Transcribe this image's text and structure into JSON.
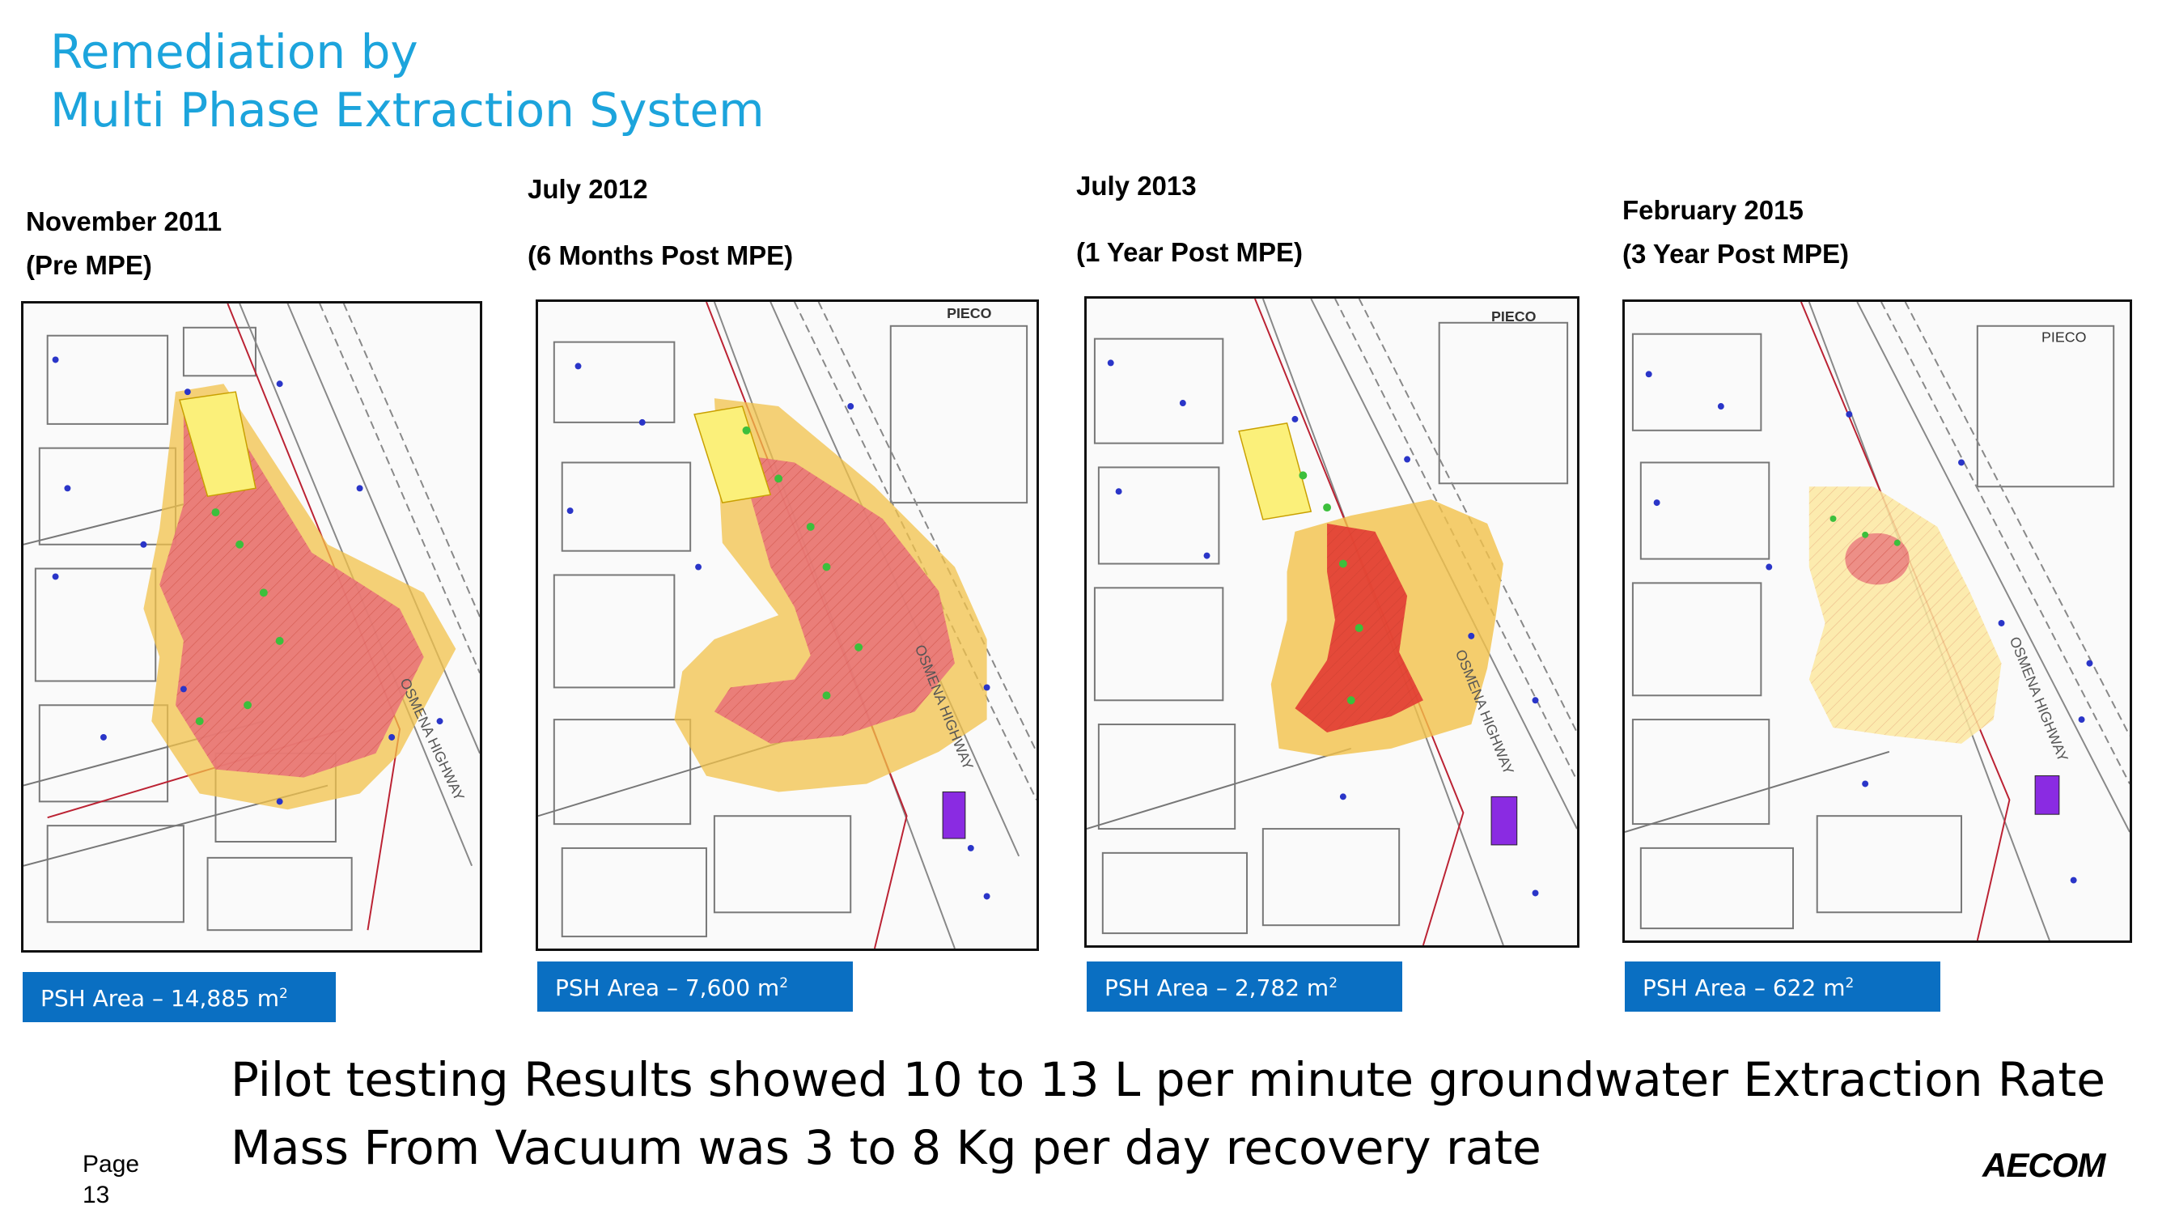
{
  "title": {
    "line1": "Remediation by",
    "line2": "Multi Phase Extraction System"
  },
  "panels": [
    {
      "date": "November 2011",
      "note": "(Pre MPE)",
      "psh_label": "PSH Area – 14,885 m",
      "psh_sup": "2",
      "road_label": "OSMENA HIGHWAY"
    },
    {
      "date": "July 2012",
      "note": "(6 Months Post MPE)",
      "psh_label": "PSH Area – 7,600 m",
      "psh_sup": "2",
      "road_label": "OSMENA HIGHWAY",
      "corner_label": "PIECO"
    },
    {
      "date": "July 2013",
      "note": "(1 Year Post MPE)",
      "psh_label": "PSH Area – 2,782 m",
      "psh_sup": "2",
      "road_label": "OSMENA HIGHWAY",
      "corner_label": "PIECO"
    },
    {
      "date": "February 2015",
      "note": "(3 Year Post MPE)",
      "psh_label": "PSH Area – 622 m",
      "psh_sup": "2",
      "road_label": "OSMENA HIGHWAY",
      "corner_label": "PIECO"
    }
  ],
  "bottom": {
    "line1": "Pilot testing Results showed 10 to 13 L per minute groundwater Extraction Rate",
    "line2": "Mass From Vacuum was 3 to 8 Kg per day recovery rate"
  },
  "page": {
    "label": "Page",
    "number": "13"
  },
  "logo": {
    "text": "AECOM"
  },
  "colors": {
    "title": "#1ca4dc",
    "psh_box": "#0a6fc2",
    "plume_outer": "#f2c24a",
    "plume_inner": "#e8707a",
    "source_area": "#fbf07a"
  }
}
